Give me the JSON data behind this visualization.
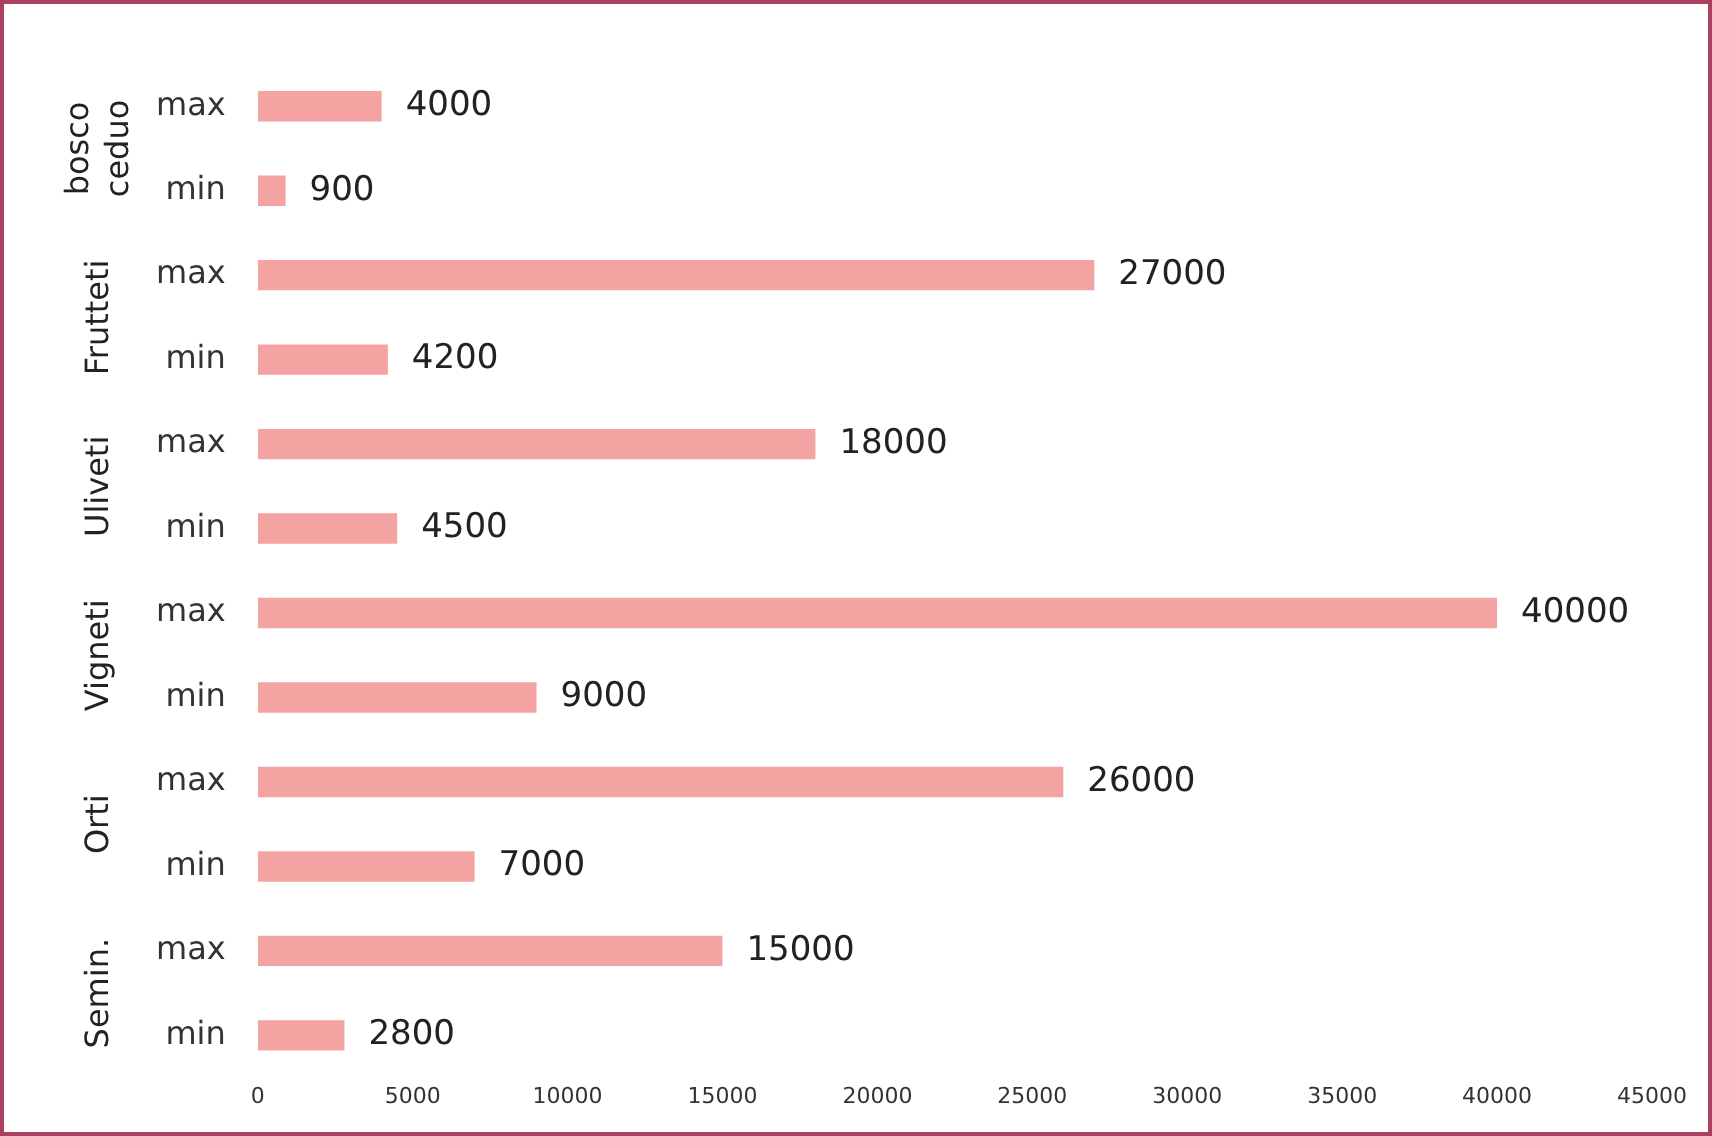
{
  "chart_data": {
    "type": "bar",
    "orientation": "horizontal",
    "categories": [
      "max",
      "min",
      "max",
      "min",
      "max",
      "min",
      "max",
      "min",
      "max",
      "min",
      "max",
      "min"
    ],
    "values": [
      4000,
      900,
      27000,
      4200,
      18000,
      4500,
      40000,
      9000,
      26000,
      7000,
      15000,
      2800
    ],
    "color": "#f4a3a3",
    "xlim": [
      0,
      45000
    ],
    "xticks": [
      0,
      5000,
      10000,
      15000,
      20000,
      25000,
      30000,
      35000,
      40000,
      45000
    ],
    "grid": false,
    "legend": false,
    "data_labels": true,
    "annotations": [
      "bosco ceduo",
      "Frutteti",
      "Uliveti",
      "Vigneti",
      "Orti",
      "Semin."
    ]
  }
}
